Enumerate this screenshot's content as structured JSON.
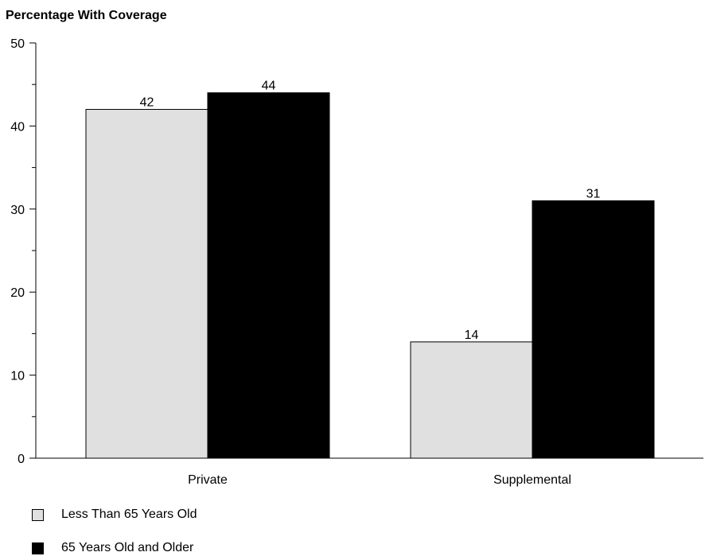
{
  "chart_data": {
    "type": "bar",
    "title": "",
    "ylabel": "Percentage  With Coverage",
    "xlabel": "",
    "categories": [
      "Private",
      "Supplemental"
    ],
    "series": [
      {
        "name": "Less Than 65 Years Old",
        "values": [
          42,
          14
        ],
        "color": "#e0e0e0"
      },
      {
        "name": "65 Years Old and Older",
        "values": [
          44,
          31
        ],
        "color": "#000000"
      }
    ],
    "ylim": [
      0,
      50
    ],
    "yticks": [
      "0",
      "10",
      "20",
      "30",
      "40",
      "50"
    ],
    "value_labels": [
      [
        "42",
        "14"
      ],
      [
        "44",
        "31"
      ]
    ],
    "grid": false,
    "legend_position": "bottom-left"
  }
}
